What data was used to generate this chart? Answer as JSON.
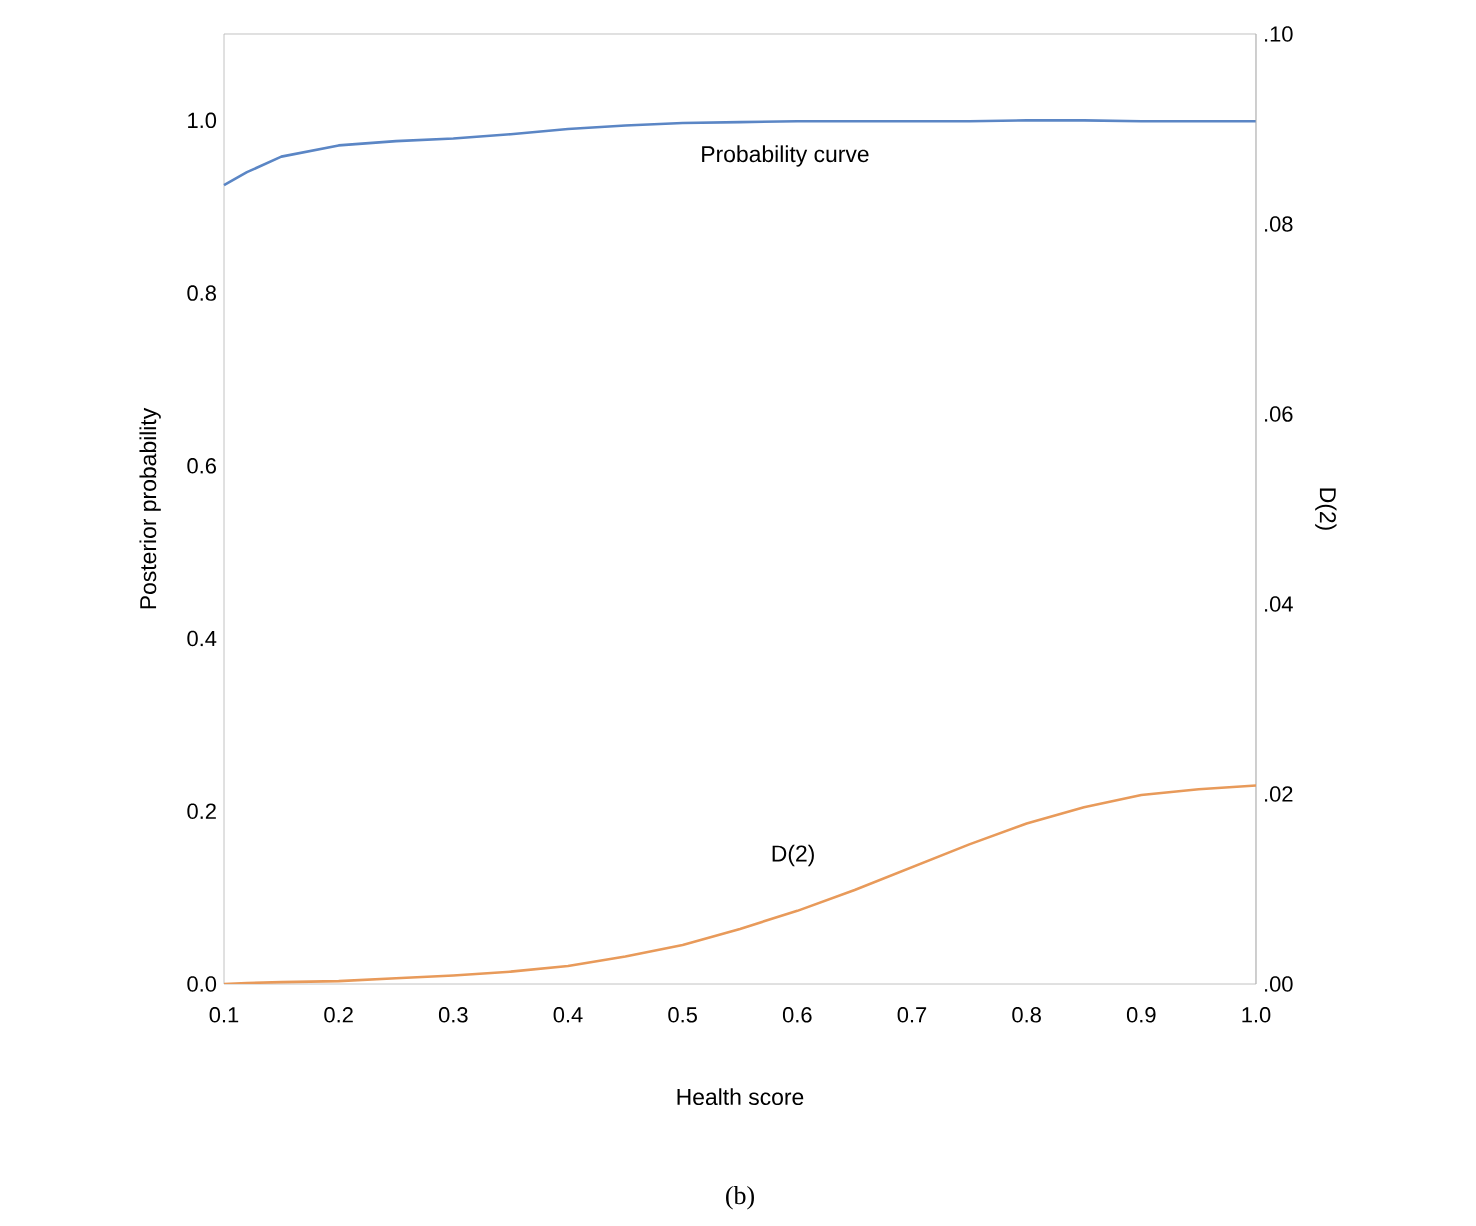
{
  "chart_data": {
    "type": "line",
    "xlabel": "Health score",
    "ylabel": "Posterior probability",
    "y2label": "D(2)",
    "xlim": [
      0.1,
      1.0
    ],
    "xticks": [
      {
        "value": 0.1,
        "label": "0.1"
      },
      {
        "value": 0.2,
        "label": "0.2"
      },
      {
        "value": 0.3,
        "label": "0.3"
      },
      {
        "value": 0.4,
        "label": "0.4"
      },
      {
        "value": 0.5,
        "label": "0.5"
      },
      {
        "value": 0.6,
        "label": "0.6"
      },
      {
        "value": 0.7,
        "label": "0.7"
      },
      {
        "value": 0.8,
        "label": "0.8"
      },
      {
        "value": 0.9,
        "label": "0.9"
      },
      {
        "value": 1.0,
        "label": "1.0"
      }
    ],
    "ylim": [
      0,
      1.1
    ],
    "yticks": [
      {
        "value": 0,
        "label": "0.0"
      },
      {
        "value": 0.2,
        "label": "0.2"
      },
      {
        "value": 0.4,
        "label": "0.4"
      },
      {
        "value": 0.6,
        "label": "0.6"
      },
      {
        "value": 0.8,
        "label": "0.8"
      },
      {
        "value": 1.0,
        "label": "1.0"
      }
    ],
    "y2lim": [
      0,
      0.1
    ],
    "y2ticks": [
      {
        "value": 0,
        "label": ".00"
      },
      {
        "value": 0.02,
        "label": ".02"
      },
      {
        "value": 0.04,
        "label": ".04"
      },
      {
        "value": 0.06,
        "label": ".06"
      },
      {
        "value": 0.08,
        "label": ".08"
      },
      {
        "value": 0.1,
        "label": ".10"
      }
    ],
    "x": [
      0.1,
      0.12,
      0.15,
      0.2,
      0.25,
      0.3,
      0.35,
      0.4,
      0.45,
      0.5,
      0.55,
      0.6,
      0.65,
      0.7,
      0.75,
      0.8,
      0.85,
      0.9,
      0.95,
      1.0
    ],
    "series": [
      {
        "name": "Probability curve",
        "color": "#5b86c5",
        "values": [
          0.925,
          0.94,
          0.958,
          0.971,
          0.976,
          0.979,
          0.984,
          0.99,
          0.994,
          0.997,
          0.998,
          0.999,
          0.999,
          0.999,
          0.999,
          1.0,
          1.0,
          0.999,
          0.999,
          0.999
        ]
      },
      {
        "name": "D(2)",
        "color": "#e89a5a",
        "axis": "y2",
        "values": [
          0,
          0.0001,
          0.0002,
          0.0003,
          0.0006,
          0.0009,
          0.0013,
          0.0019,
          0.0029,
          0.0041,
          0.0058,
          0.0077,
          0.0099,
          0.0123,
          0.0147,
          0.0169,
          0.0186,
          0.0199,
          0.0205,
          0.0209
        ]
      }
    ],
    "annotations": [
      "(b)"
    ]
  }
}
